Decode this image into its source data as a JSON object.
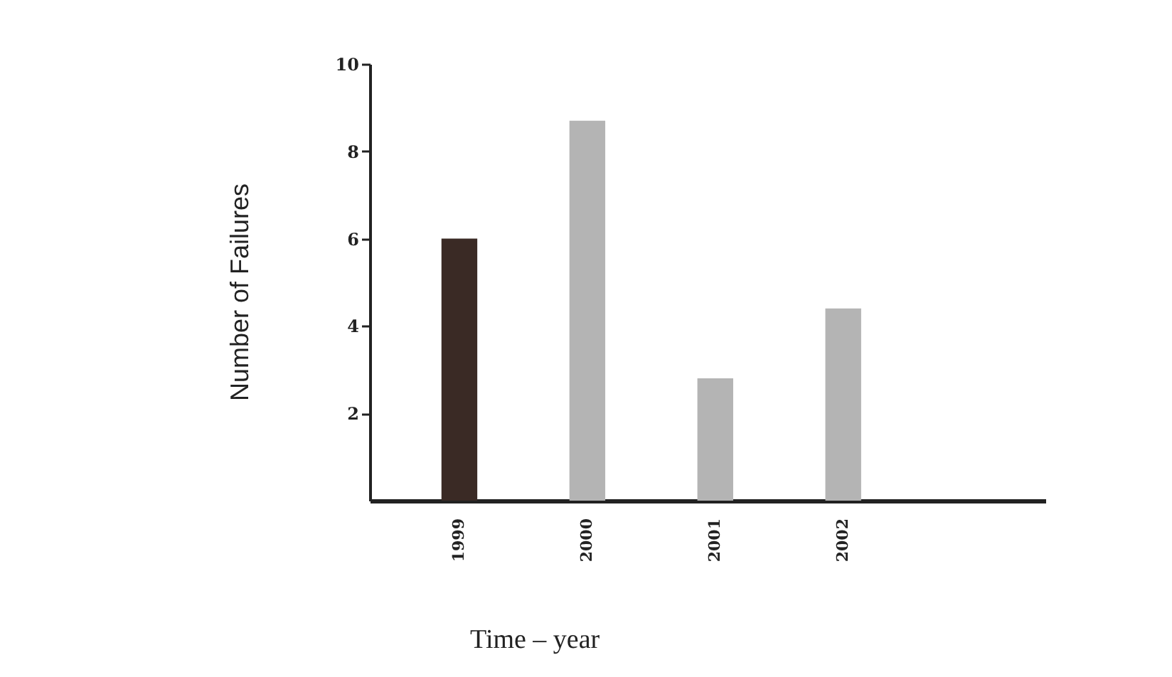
{
  "chart_data": {
    "type": "bar",
    "xlabel": "Time – year",
    "ylabel": "Number of Failures",
    "categories": [
      "1999",
      "2000",
      "2001",
      "2002"
    ],
    "values": [
      6,
      8.7,
      2.8,
      4.4
    ],
    "colors": [
      "#3a2a25",
      "#b4b4b4",
      "#b4b4b4",
      "#b4b4b4"
    ],
    "ylim": [
      0,
      10
    ],
    "yticks": [
      2,
      4,
      6,
      8,
      10
    ],
    "grid": false,
    "legend": false
  }
}
